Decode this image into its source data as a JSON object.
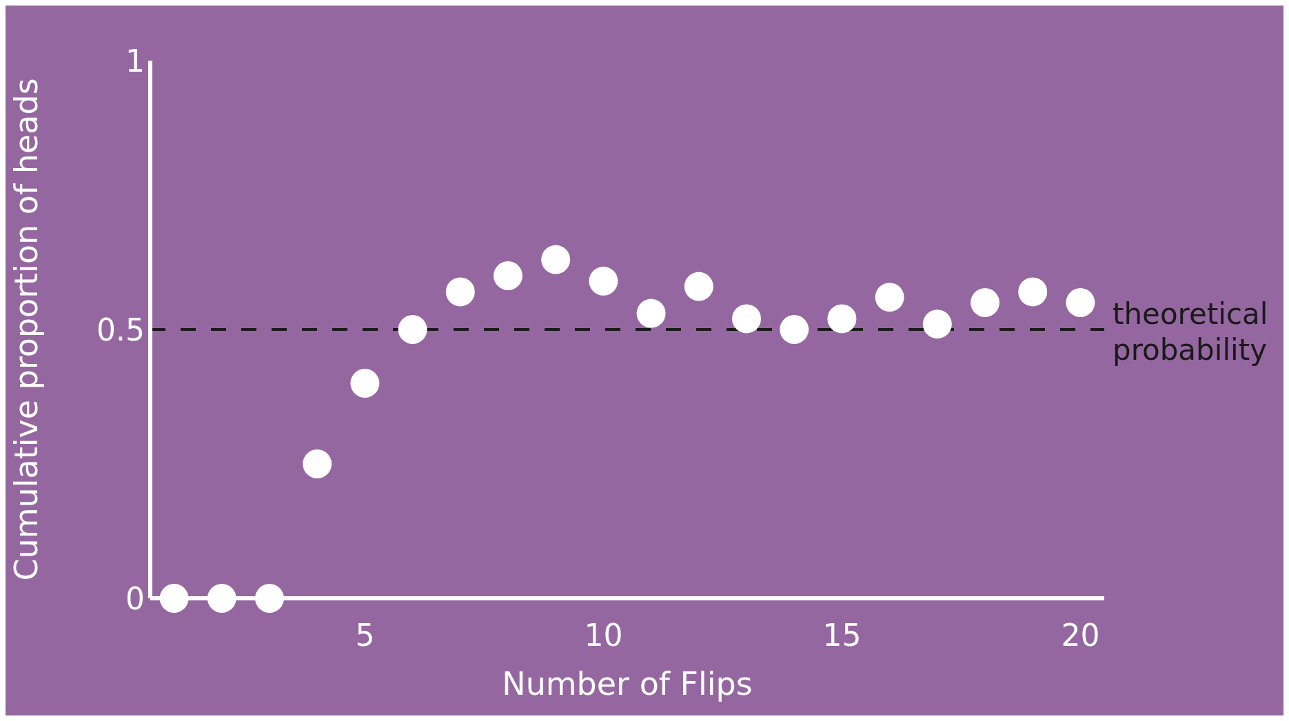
{
  "chart_data": {
    "type": "scatter",
    "xlabel": "Number of Flips",
    "ylabel": "Cumulative proportion of heads",
    "x": [
      1,
      2,
      3,
      4,
      5,
      6,
      7,
      8,
      9,
      10,
      11,
      12,
      13,
      14,
      15,
      16,
      17,
      18,
      19,
      20
    ],
    "series": [
      {
        "color": "#ffffff",
        "values": [
          0,
          0,
          0,
          0.25,
          0.4,
          0.5,
          0.57,
          0.6,
          0.63,
          0.59,
          0.53,
          0.58,
          0.52,
          0.5,
          0.52,
          0.56,
          0.51,
          0.55,
          0.57,
          0.55
        ]
      }
    ],
    "xlim": [
      0.5,
      20.5
    ],
    "xticks": [
      5,
      10,
      15,
      20
    ],
    "ylim": [
      0,
      1
    ],
    "yticks": [
      0,
      0.5,
      1
    ],
    "marker": "circle",
    "grid": false,
    "legend": false,
    "ref_lines": [
      {
        "axis": "y",
        "value": 0.5,
        "label": "theoretical probability",
        "color": "#1a1a1a",
        "line_style": "dashed"
      }
    ]
  }
}
